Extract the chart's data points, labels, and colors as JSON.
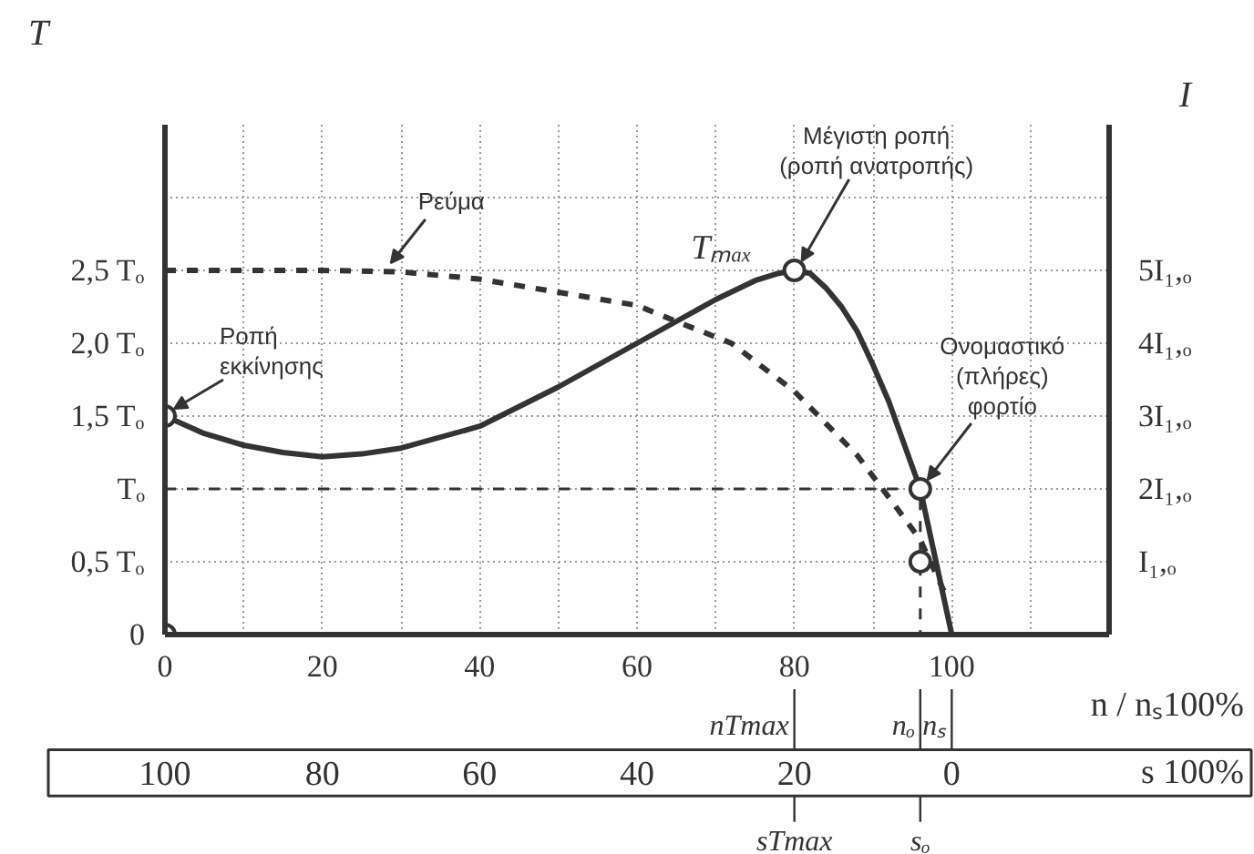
{
  "chart_data": {
    "type": "line",
    "xlabel": "n / nₛ100%",
    "ylabel": "T",
    "y2label": "I",
    "x2label": "s 100%",
    "xlim": [
      0,
      120
    ],
    "ylim": [
      0,
      3.5
    ],
    "y2lim": [
      0,
      7.0
    ],
    "x2lim": [
      100,
      -20
    ],
    "xticks": [
      0,
      {
        "value": 10,
        "label": null
      },
      20,
      {
        "value": 30,
        "label": null
      },
      40,
      {
        "value": 50,
        "label": null
      },
      60,
      {
        "value": 70,
        "label": null
      },
      80,
      {
        "value": 90,
        "label": null
      },
      100,
      {
        "value": 110,
        "label": null
      }
    ],
    "yticks": [
      0,
      {
        "value": 0.5,
        "label": "0,5 Tₒ"
      },
      {
        "value": 1.0,
        "label": "Tₒ"
      },
      {
        "value": 1.5,
        "label": "1,5 Tₒ"
      },
      {
        "value": 2.0,
        "label": "2,0 Tₒ"
      },
      {
        "value": 2.5,
        "label": "2,5 Tₒ"
      },
      {
        "value": 3.0,
        "label": null
      }
    ],
    "y2ticks": [
      {
        "value": 1,
        "label": "I₁,ₒ"
      },
      {
        "value": 2,
        "label": "2I₁,ₒ"
      },
      {
        "value": 3,
        "label": "3I₁,ₒ"
      },
      {
        "value": 4,
        "label": "4I₁,ₒ"
      },
      {
        "value": 5,
        "label": "5I₁,ₒ"
      }
    ],
    "x2ticks": [
      100,
      80,
      60,
      40,
      20,
      0
    ],
    "grid": true,
    "series": [
      {
        "color": "#333333",
        "line_style": "solid",
        "marker": "none",
        "x": [
          0,
          5,
          10,
          15,
          20,
          25,
          30,
          40,
          50,
          60,
          65,
          70,
          75,
          78,
          80,
          82,
          84,
          86,
          88,
          90,
          92,
          94,
          96,
          98,
          100
        ],
        "values": [
          1.5,
          1.38,
          1.3,
          1.25,
          1.22,
          1.24,
          1.28,
          1.43,
          1.7,
          2.0,
          2.15,
          2.3,
          2.43,
          2.48,
          2.5,
          2.48,
          2.38,
          2.25,
          2.08,
          1.85,
          1.6,
          1.3,
          1.0,
          0.5,
          0
        ]
      },
      {
        "color": "#333333",
        "line_style": "dashed",
        "marker": "none",
        "axis": "y2",
        "x": [
          0,
          20,
          30,
          40,
          50,
          60,
          65,
          72,
          80,
          88,
          93,
          96,
          99
        ],
        "values": [
          5.0,
          5.0,
          4.98,
          4.88,
          4.7,
          4.52,
          4.3,
          4.0,
          3.34,
          2.46,
          1.74,
          1.3,
          0.6
        ]
      },
      {
        "color": "#333333",
        "line_style": "dashed",
        "marker": "none",
        "x": [
          0,
          96,
          96
        ],
        "values": [
          1.0,
          1.0,
          0
        ]
      },
      {
        "type": "scatter",
        "color": "#333333",
        "marker": "circle",
        "x": [
          0,
          0,
          80,
          96
        ],
        "values": [
          0,
          1.5,
          2.5,
          1.0
        ]
      },
      {
        "type": "scatter",
        "color": "#333333",
        "marker": "circle",
        "axis": "y2",
        "x": [
          96
        ],
        "values": [
          1.0
        ]
      }
    ],
    "annotations": [
      {
        "text": "Ρεύμα",
        "x": 28,
        "y": 2.5
      },
      {
        "text": "Ροπή\nεκκίνησης",
        "x": 0,
        "y": 1.5
      },
      {
        "text": "Μέγιστη ροπή\n(ροπή ανατροπής)",
        "x": 80,
        "y": 2.5
      },
      {
        "text": "Tₘₐₓ",
        "x": 80,
        "y": 2.5
      },
      {
        "text": "Ονομαστικό\n(πλήρες)\nφορτίο",
        "x": 96,
        "y": 1.0
      },
      "nTmax",
      "nₒ",
      "nₛ",
      "sTmax",
      "sₒ"
    ]
  }
}
